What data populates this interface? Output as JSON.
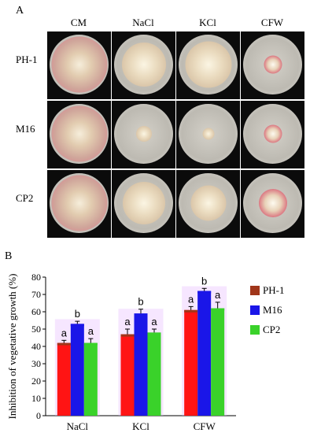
{
  "panel_a": {
    "letter": "A",
    "columns": [
      "CM",
      "NaCl",
      "KCl",
      "CFW"
    ],
    "rows": [
      {
        "label": "PH-1",
        "colony_diameter": [
          0.95,
          0.75,
          0.78,
          0.3
        ]
      },
      {
        "label": "M16",
        "colony_diameter": [
          0.95,
          0.26,
          0.2,
          0.3
        ]
      },
      {
        "label": "CP2",
        "colony_diameter": [
          0.95,
          0.72,
          0.6,
          0.48
        ]
      }
    ]
  },
  "panel_b": {
    "letter": "B"
  },
  "colors": {
    "PH-1": "#a0361a",
    "M16": "#1a16e8",
    "CP2": "#3ad22a",
    "bar_main": "#ff1414",
    "highlight": "#e6b8ff"
  },
  "chart_data": {
    "type": "bar",
    "categories": [
      "NaCl",
      "KCl",
      "CFW"
    ],
    "ylabel": "Inhibition of vegetative growth (%)",
    "xlabel": "",
    "ylim": [
      0,
      80
    ],
    "yticks": [
      0,
      10,
      20,
      30,
      40,
      50,
      60,
      70,
      80
    ],
    "series": [
      {
        "name": "PH-1",
        "values": [
          42,
          47,
          61
        ],
        "errors": [
          1.5,
          3,
          2
        ],
        "letters": [
          "a",
          "a",
          "a"
        ]
      },
      {
        "name": "M16",
        "values": [
          53,
          59,
          72
        ],
        "errors": [
          1.5,
          2.5,
          1.5
        ],
        "letters": [
          "b",
          "b",
          "b"
        ]
      },
      {
        "name": "CP2",
        "values": [
          42,
          48,
          62
        ],
        "errors": [
          2.5,
          2,
          3.5
        ],
        "letters": [
          "a",
          "a",
          "a"
        ]
      }
    ],
    "legend_position": "right"
  }
}
